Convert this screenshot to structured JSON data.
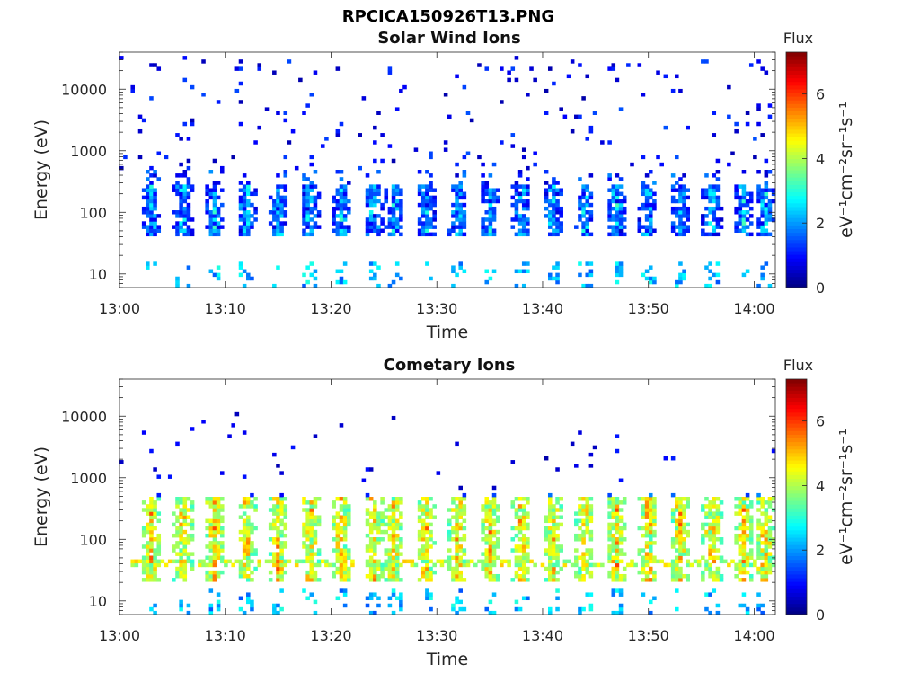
{
  "figure": {
    "title": "RPCICA150926T13.PNG"
  },
  "chart_data": [
    {
      "type": "heatmap",
      "title": "Solar Wind Ions",
      "xlabel": "Time",
      "ylabel": "Energy (eV)",
      "yscale": "log",
      "xlim": [
        "13:00",
        "14:02"
      ],
      "ylim": [
        6,
        40000
      ],
      "x_ticks": [
        "13:00",
        "13:10",
        "13:20",
        "13:30",
        "13:40",
        "13:50",
        "14:00"
      ],
      "y_ticks": [
        "10",
        "100",
        "1000",
        "10000"
      ],
      "colorbar": {
        "title": "Flux",
        "label": "eV⁻¹cm⁻²sr⁻¹s⁻¹",
        "ticks": [
          0,
          2,
          4,
          6
        ],
        "range": [
          0,
          7.3
        ],
        "colormap": "jet"
      },
      "grid": false,
      "features": {
        "pulse_times": [
          "13:03",
          "13:06",
          "13:09",
          "13:12",
          "13:15",
          "13:18",
          "13:21",
          "13:24",
          "13:26",
          "13:29",
          "13:32",
          "13:35",
          "13:38",
          "13:41",
          "13:44",
          "13:47",
          "13:50",
          "13:53",
          "13:56",
          "13:59",
          "14:01"
        ],
        "core_energy_ev": [
          40,
          300
        ],
        "core_flux_range": [
          0.5,
          3.5
        ],
        "sparse_energy_ev": [
          500,
          35000
        ],
        "sparse_flux_range": [
          0.3,
          1.5
        ]
      }
    },
    {
      "type": "heatmap",
      "title": "Cometary Ions",
      "xlabel": "Time",
      "ylabel": "Energy (eV)",
      "yscale": "log",
      "xlim": [
        "13:00",
        "14:02"
      ],
      "ylim": [
        6,
        40000
      ],
      "x_ticks": [
        "13:00",
        "13:10",
        "13:20",
        "13:30",
        "13:40",
        "13:50",
        "14:00"
      ],
      "y_ticks": [
        "10",
        "100",
        "1000",
        "10000"
      ],
      "colorbar": {
        "title": "Flux",
        "label": "eV⁻¹cm⁻²sr⁻¹s⁻¹",
        "ticks": [
          0,
          2,
          4,
          6
        ],
        "range": [
          0,
          7.3
        ],
        "colormap": "jet"
      },
      "grid": false,
      "features": {
        "pulse_times": [
          "13:03",
          "13:06",
          "13:09",
          "13:12",
          "13:15",
          "13:18",
          "13:21",
          "13:24",
          "13:26",
          "13:29",
          "13:32",
          "13:35",
          "13:38",
          "13:41",
          "13:44",
          "13:47",
          "13:50",
          "13:53",
          "13:56",
          "13:59",
          "14:01"
        ],
        "core_energy_ev": [
          20,
          500
        ],
        "core_flux_range": [
          3,
          6.2
        ],
        "baseline_energy_ev": 42,
        "sparse_energy_ev": [
          600,
          12000
        ],
        "sparse_flux_range": [
          0.3,
          1.2
        ]
      }
    }
  ]
}
